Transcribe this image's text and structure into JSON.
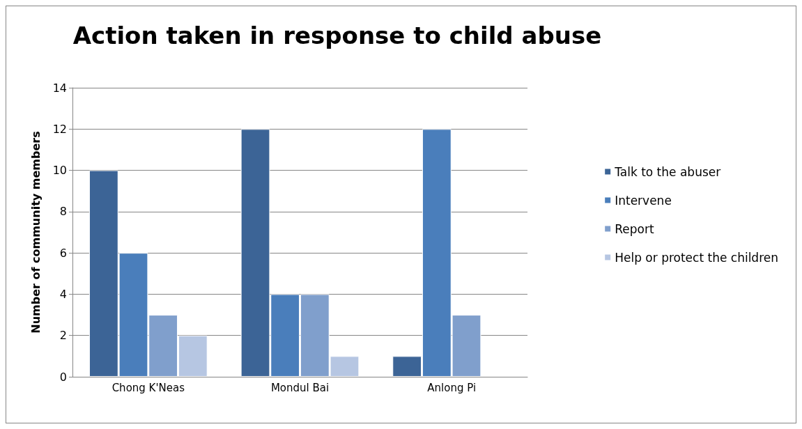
{
  "chart_data": {
    "type": "bar",
    "title": "Action taken in response to child abuse",
    "ylabel": "Number of community members",
    "categories": [
      "Chong K'Neas",
      "Mondul Bai",
      "Anlong Pi"
    ],
    "series": [
      {
        "name": "Talk to the abuser",
        "color": "#3c6496",
        "values": [
          10,
          12,
          1
        ]
      },
      {
        "name": "Intervene",
        "color": "#4a7ebb",
        "values": [
          6,
          4,
          12
        ]
      },
      {
        "name": "Report",
        "color": "#809fcc",
        "values": [
          3,
          4,
          3
        ]
      },
      {
        "name": "Help or protect the children",
        "color": "#b6c6e2",
        "values": [
          2,
          1,
          null
        ]
      }
    ],
    "ylim": [
      0,
      14
    ],
    "yticks": [
      0,
      2,
      4,
      6,
      8,
      10,
      12,
      14
    ],
    "grid": "y",
    "legend": "right"
  }
}
